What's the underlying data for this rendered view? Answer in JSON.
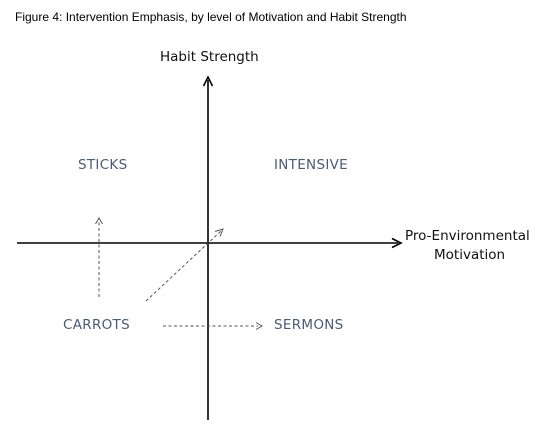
{
  "figure": {
    "title": "Figure 4: Intervention Emphasis, by level of Motivation and Habit Strength"
  },
  "axes": {
    "y_label": "Habit Strength",
    "x_label_line1": "Pro-Environmental",
    "x_label_line2": "Motivation"
  },
  "quadrants": {
    "top_left": "STICKS",
    "top_right": "INTENSIVE",
    "bottom_left": "CARROTS",
    "bottom_right": "SERMONS"
  },
  "colors": {
    "axis": "#000000",
    "arrow_dashed": "#555555",
    "quadrant_text": "#4a5a78"
  }
}
